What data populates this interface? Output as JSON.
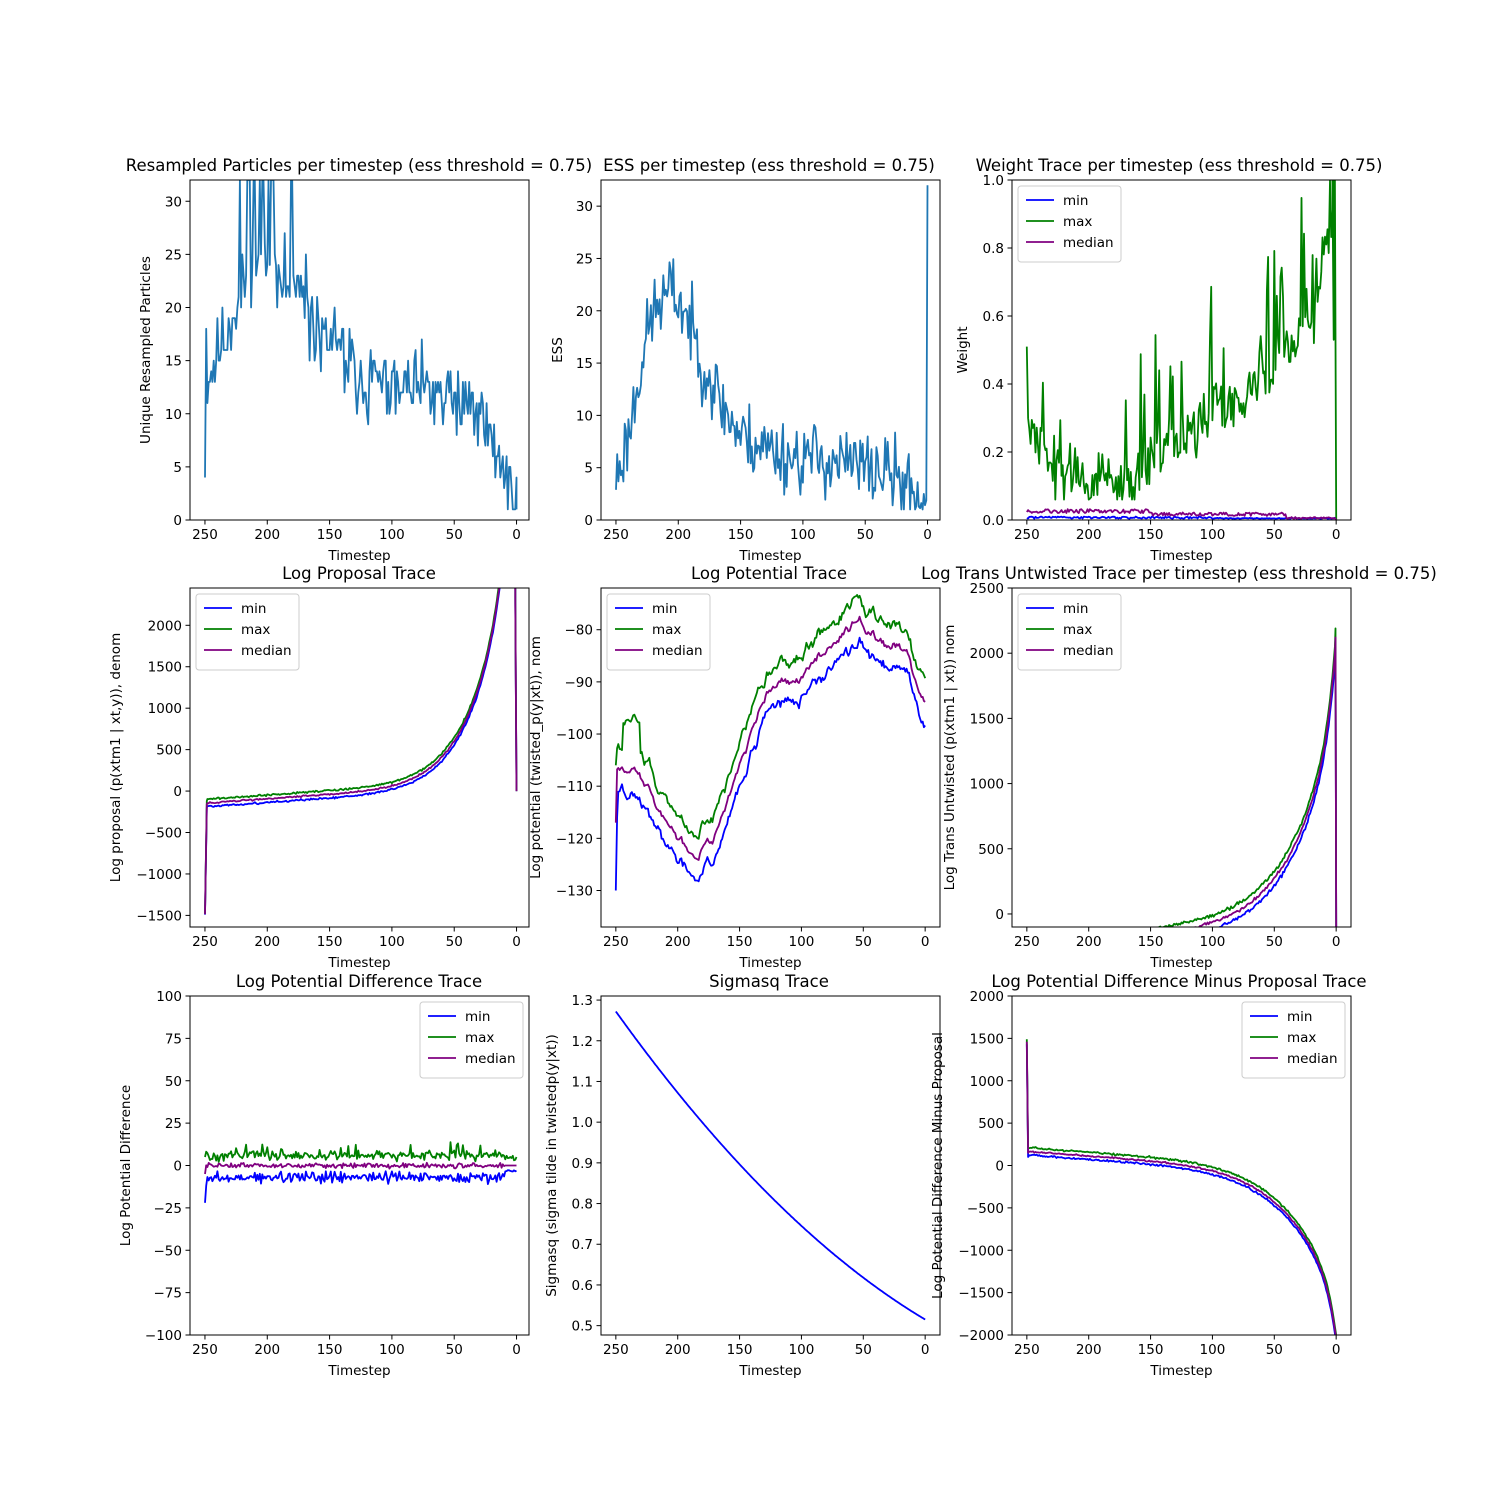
{
  "figure": {
    "colors": {
      "default": "#1f77b4",
      "min": "#0000ff",
      "max": "#008000",
      "median": "#800080"
    }
  },
  "chart_data": [
    {
      "id": "resampled",
      "type": "line",
      "title": "Resampled Particles per timestep (ess threshold = 0.75)",
      "xlabel": "Timestep",
      "ylabel": "Unique Resampled Particles",
      "xlim": [
        262,
        -10
      ],
      "ylim": [
        0,
        32
      ],
      "xticks": [
        250,
        200,
        150,
        100,
        50,
        0
      ],
      "yticks": [
        0,
        5,
        10,
        15,
        20,
        25,
        30
      ],
      "legend": null,
      "series": [
        {
          "color_key": "default",
          "shape": "resampled"
        }
      ]
    },
    {
      "id": "ess",
      "type": "line",
      "title": "ESS per timestep (ess threshold = 0.75)",
      "xlabel": "Timestep",
      "ylabel": "ESS",
      "xlim": [
        262,
        -10
      ],
      "ylim": [
        0,
        32.5
      ],
      "xticks": [
        250,
        200,
        150,
        100,
        50,
        0
      ],
      "yticks": [
        0,
        5,
        10,
        15,
        20,
        25,
        30
      ],
      "legend": null,
      "series": [
        {
          "color_key": "default",
          "shape": "ess"
        }
      ]
    },
    {
      "id": "weight",
      "type": "line",
      "title": "Weight Trace per timestep (ess threshold = 0.75)",
      "xlabel": "Timestep",
      "ylabel": "Weight",
      "xlim": [
        262,
        -12
      ],
      "ylim": [
        0,
        1.0
      ],
      "xticks": [
        250,
        200,
        150,
        100,
        50,
        0
      ],
      "yticks": [
        0.0,
        0.2,
        0.4,
        0.6,
        0.8,
        1.0
      ],
      "ytick_labels": [
        "0.0",
        "0.2",
        "0.4",
        "0.6",
        "0.8",
        "1.0"
      ],
      "legend": "upper left",
      "series": [
        {
          "name": "min",
          "color_key": "min",
          "shape": "w_min"
        },
        {
          "name": "max",
          "color_key": "max",
          "shape": "w_max"
        },
        {
          "name": "median",
          "color_key": "median",
          "shape": "w_med"
        }
      ]
    },
    {
      "id": "logproposal",
      "type": "line",
      "title": "Log Proposal Trace",
      "xlabel": "Timestep",
      "ylabel": "Log proposal (p(xtm1 | xt,y)), denom",
      "xlim": [
        262,
        -10
      ],
      "ylim": [
        -1640,
        2450
      ],
      "xticks": [
        250,
        200,
        150,
        100,
        50,
        0
      ],
      "yticks": [
        -1500,
        -1000,
        -500,
        0,
        500,
        1000,
        1500,
        2000
      ],
      "ytick_labels": [
        "−1500",
        "−1000",
        "−500",
        "0",
        "500",
        "1000",
        "1500",
        "2000"
      ],
      "legend": "upper left",
      "series": [
        {
          "name": "min",
          "color_key": "min",
          "shape": "lp_min"
        },
        {
          "name": "max",
          "color_key": "max",
          "shape": "lp_max"
        },
        {
          "name": "median",
          "color_key": "median",
          "shape": "lp_med"
        }
      ]
    },
    {
      "id": "logpotential",
      "type": "line",
      "title": "Log Potential Trace",
      "xlabel": "Timestep",
      "ylabel": "Log potential (twisted_p(y|xt)), nom",
      "xlim": [
        262,
        -12
      ],
      "ylim": [
        -137,
        -72
      ],
      "xticks": [
        250,
        200,
        150,
        100,
        50,
        0
      ],
      "yticks": [
        -130,
        -120,
        -110,
        -100,
        -90,
        -80
      ],
      "ytick_labels": [
        "−130",
        "−120",
        "−110",
        "−100",
        "−90",
        "−80"
      ],
      "legend": "upper left",
      "series": [
        {
          "name": "min",
          "color_key": "min",
          "shape": "pot_min"
        },
        {
          "name": "max",
          "color_key": "max",
          "shape": "pot_max"
        },
        {
          "name": "median",
          "color_key": "median",
          "shape": "pot_med"
        }
      ]
    },
    {
      "id": "logtrans",
      "type": "line",
      "title": "Log Trans Untwisted Trace per timestep (ess threshold = 0.75)",
      "xlabel": "Timestep",
      "ylabel": "Log Trans Untwisted (p(xtm1 | xt)) nom",
      "xlim": [
        262,
        -12
      ],
      "ylim": [
        -100,
        2500
      ],
      "xticks": [
        250,
        200,
        150,
        100,
        50,
        0
      ],
      "yticks": [
        0,
        500,
        1000,
        1500,
        2000,
        2500
      ],
      "legend": "upper left",
      "series": [
        {
          "name": "min",
          "color_key": "min",
          "shape": "lt_min"
        },
        {
          "name": "max",
          "color_key": "max",
          "shape": "lt_max"
        },
        {
          "name": "median",
          "color_key": "median",
          "shape": "lt_med"
        }
      ]
    },
    {
      "id": "logpotdiff",
      "type": "line",
      "title": "Log Potential Difference  Trace",
      "xlabel": "Timestep",
      "ylabel": "Log Potential Difference",
      "xlim": [
        262,
        -10
      ],
      "ylim": [
        -100,
        100
      ],
      "xticks": [
        250,
        200,
        150,
        100,
        50,
        0
      ],
      "yticks": [
        -100,
        -75,
        -50,
        -25,
        0,
        25,
        50,
        75,
        100
      ],
      "ytick_labels": [
        "−100",
        "−75",
        "−50",
        "−25",
        "0",
        "25",
        "50",
        "75",
        "100"
      ],
      "legend": "upper right",
      "series": [
        {
          "name": "min",
          "color_key": "min",
          "shape": "pd_min"
        },
        {
          "name": "max",
          "color_key": "max",
          "shape": "pd_max"
        },
        {
          "name": "median",
          "color_key": "median",
          "shape": "pd_med"
        }
      ]
    },
    {
      "id": "sigmasq",
      "type": "line",
      "title": "Sigmasq Trace",
      "xlabel": "Timestep",
      "ylabel": "Sigmasq (sigma tilde in twistedp(y|xt))",
      "xlim": [
        262,
        -12
      ],
      "ylim": [
        0.477,
        1.31
      ],
      "xticks": [
        250,
        200,
        150,
        100,
        50,
        0
      ],
      "yticks": [
        0.5,
        0.6,
        0.7,
        0.8,
        0.9,
        1.0,
        1.1,
        1.2,
        1.3
      ],
      "ytick_labels": [
        "0.5",
        "0.6",
        "0.7",
        "0.8",
        "0.9",
        "1.0",
        "1.1",
        "1.2",
        "1.3"
      ],
      "legend": null,
      "series": [
        {
          "color_key": "min",
          "shape": "sigmasq"
        }
      ]
    },
    {
      "id": "potdiffminusprop",
      "type": "line",
      "title": "Log Potential Difference Minus Proposal  Trace",
      "xlabel": "Timestep",
      "ylabel": "Log Potential Difference Minus Proposal",
      "xlim": [
        262,
        -12
      ],
      "ylim": [
        -2000,
        2000
      ],
      "xticks": [
        250,
        200,
        150,
        100,
        50,
        0
      ],
      "yticks": [
        -2000,
        -1500,
        -1000,
        -500,
        0,
        500,
        1000,
        1500,
        2000
      ],
      "ytick_labels": [
        "−2000",
        "−1500",
        "−1000",
        "−500",
        "0",
        "500",
        "1000",
        "1500",
        "2000"
      ],
      "legend": "upper right",
      "series": [
        {
          "name": "min",
          "color_key": "min",
          "shape": "pm_min"
        },
        {
          "name": "max",
          "color_key": "max",
          "shape": "pm_max"
        },
        {
          "name": "median",
          "color_key": "median",
          "shape": "pm_med"
        }
      ]
    }
  ]
}
